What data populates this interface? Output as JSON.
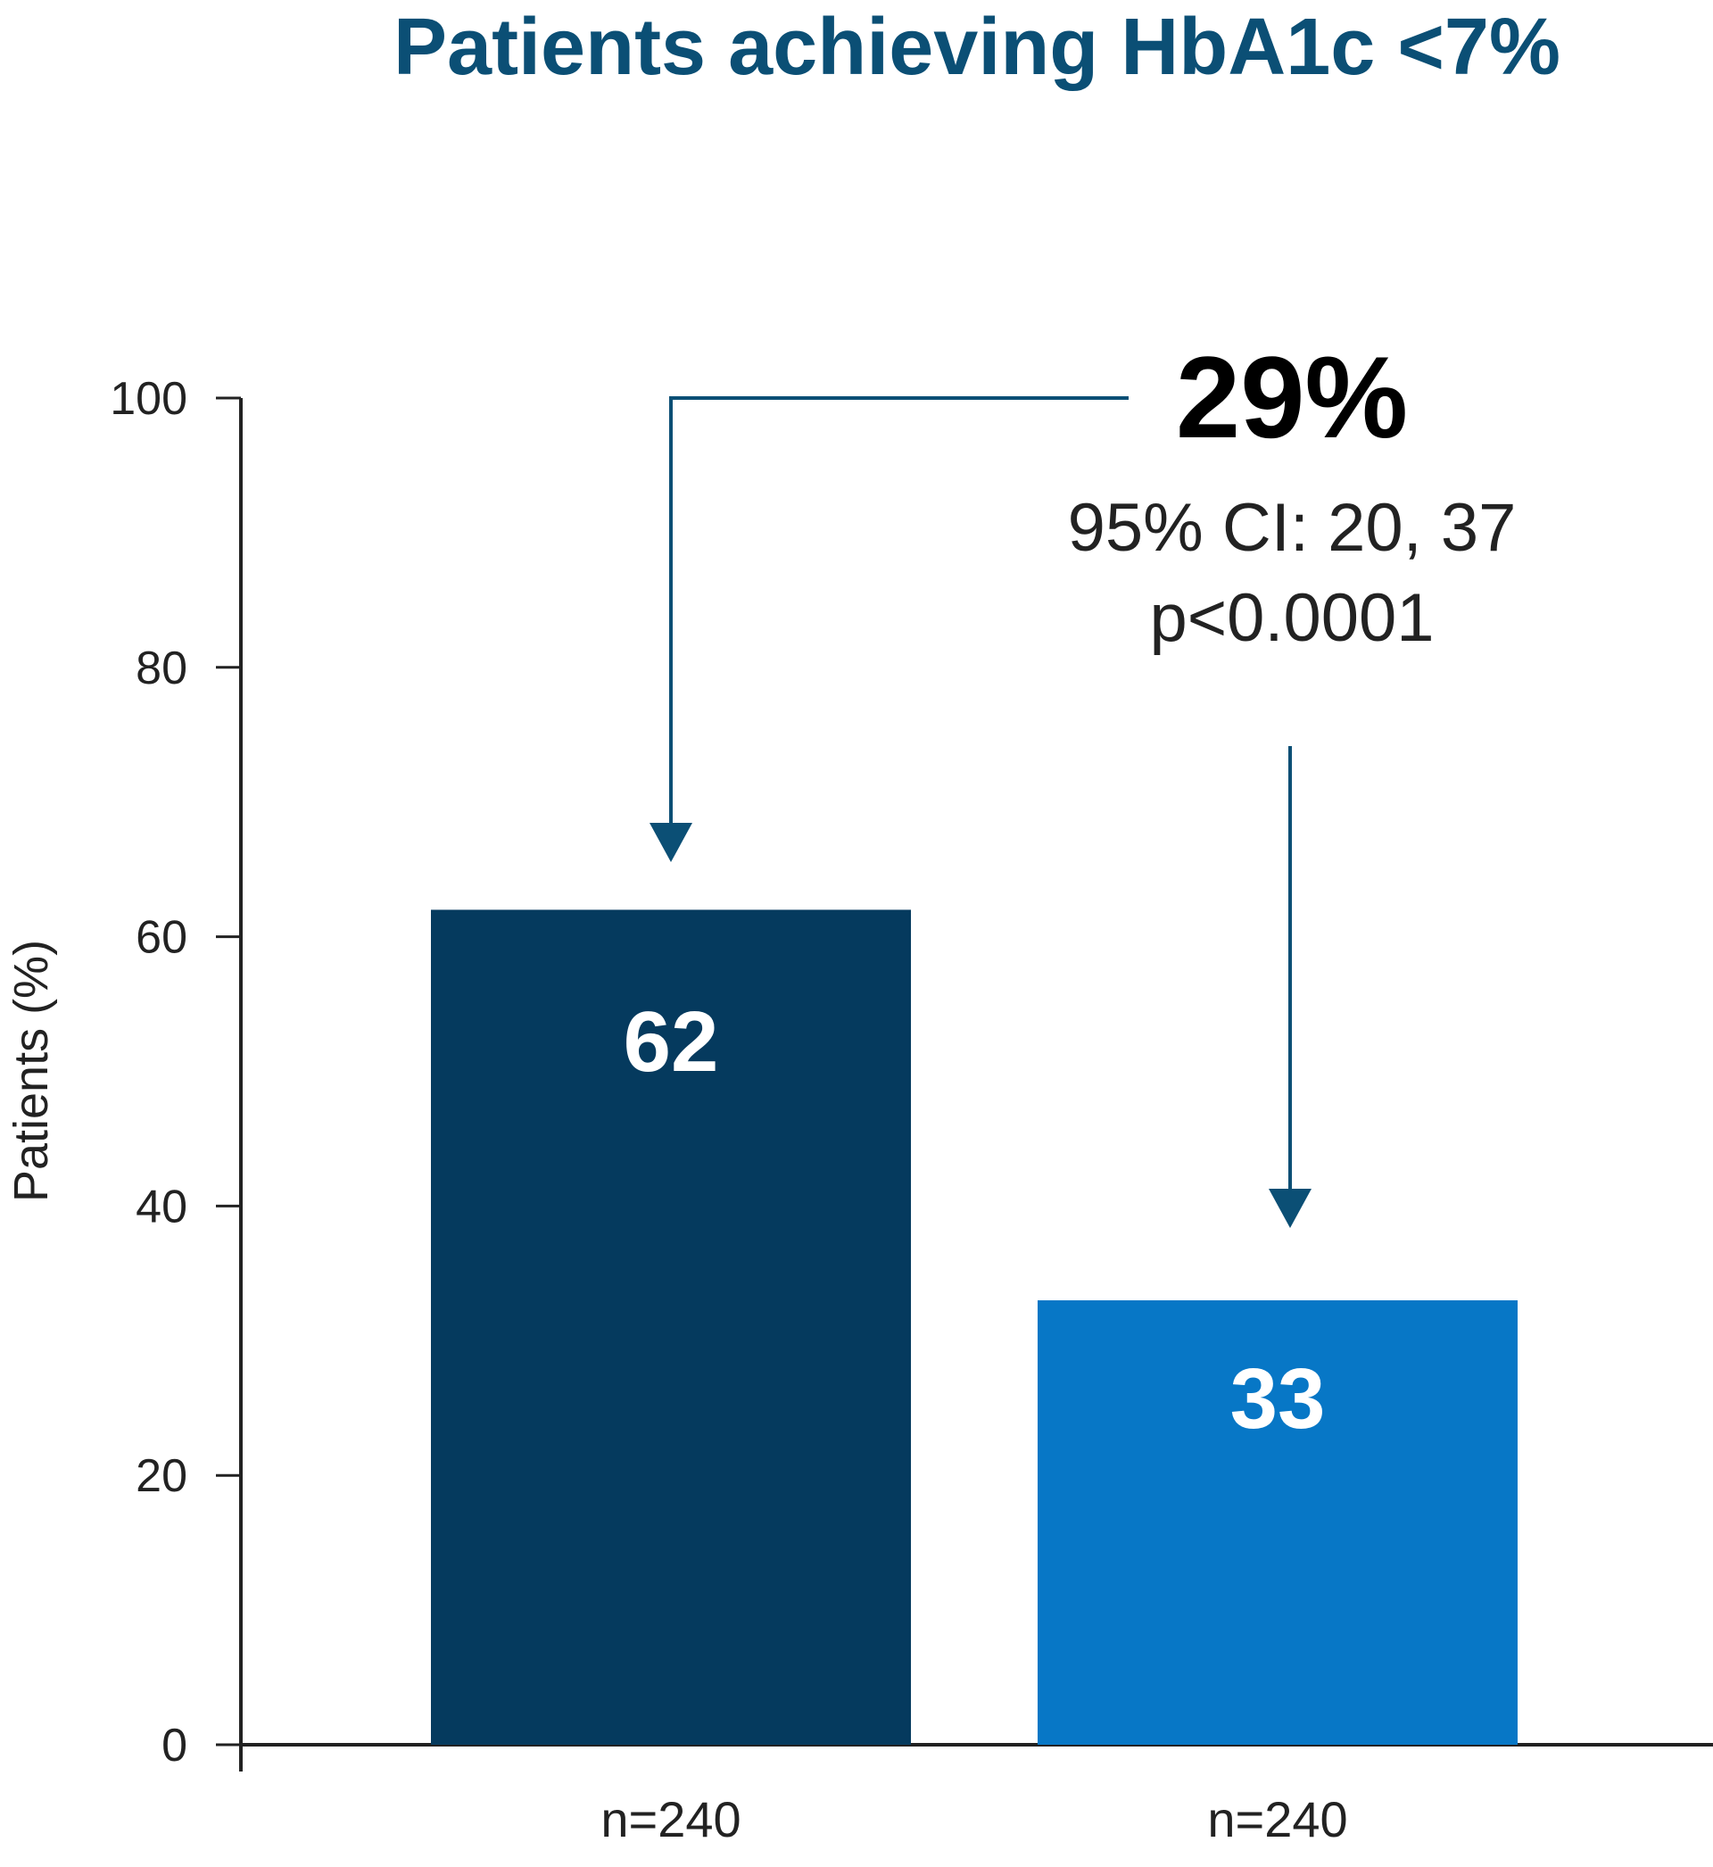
{
  "chart_data": {
    "type": "bar",
    "title": "Patients achieving HbA1c <7%",
    "ylabel": "Patients (%)",
    "xlabel": "",
    "ylim": [
      0,
      100
    ],
    "yticks": [
      0,
      20,
      40,
      60,
      80,
      100
    ],
    "categories": [
      "n=240",
      "n=240"
    ],
    "values": [
      62,
      33
    ],
    "value_labels": [
      "62",
      "33"
    ],
    "colors": [
      "#053a5e",
      "#0777c6"
    ],
    "grid": false,
    "annotation": {
      "difference": "29%",
      "ci": "95% CI: 20, 37",
      "p_value": "p<0.0001"
    }
  },
  "colors": {
    "title": "#0b4f75",
    "arrow": "#0b4f75",
    "axis": "#222222"
  }
}
